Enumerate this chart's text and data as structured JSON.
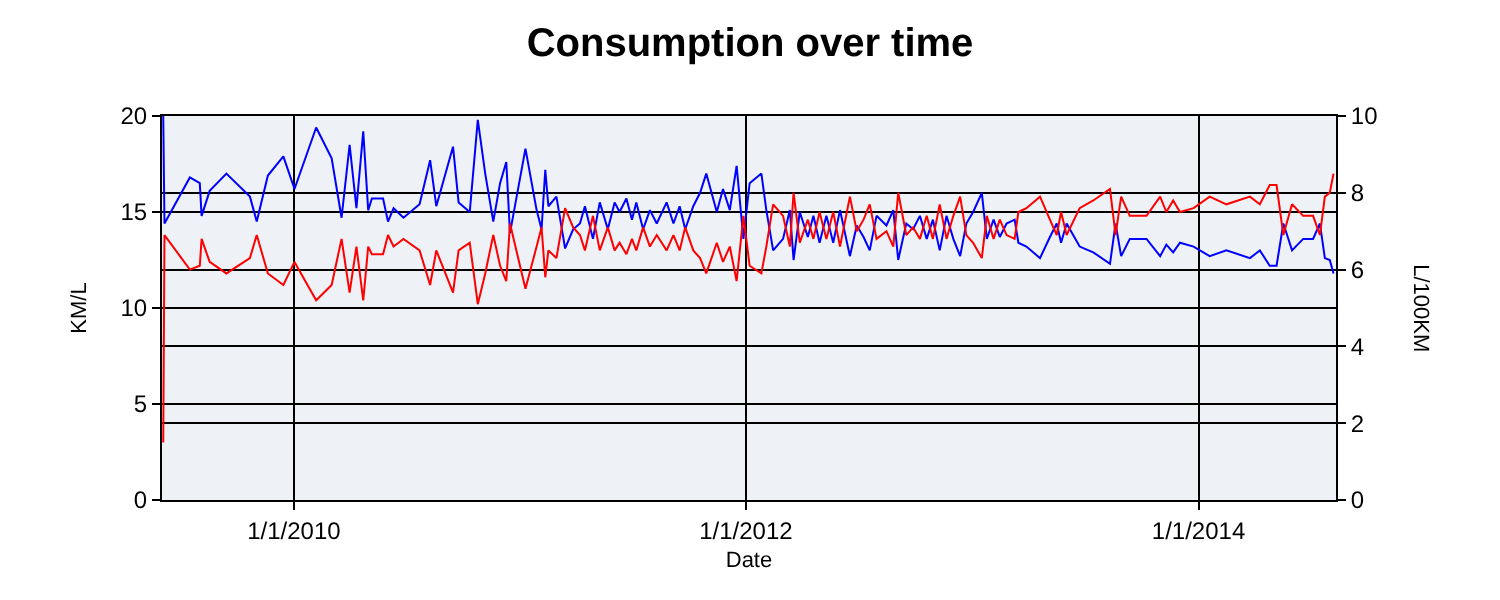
{
  "chart_data": {
    "type": "line",
    "title": "Consumption over time",
    "xlabel": "Date",
    "ylabel": "KM/L",
    "y2label": "L/100KM",
    "x": [
      "2009-06-04",
      "2009-06-06",
      "2009-07-17",
      "2009-08-02",
      "2009-08-05",
      "2009-08-18",
      "2009-09-14",
      "2009-10-22",
      "2009-11-02",
      "2009-11-20",
      "2009-12-15",
      "2010-01-02",
      "2010-02-06",
      "2010-03-03",
      "2010-03-19",
      "2010-04-01",
      "2010-04-12",
      "2010-04-23",
      "2010-05-01",
      "2010-05-07",
      "2010-05-25",
      "2010-06-02",
      "2010-06-11",
      "2010-06-27",
      "2010-07-23",
      "2010-08-09",
      "2010-08-19",
      "2010-09-15",
      "2010-09-24",
      "2010-10-12",
      "2010-10-25",
      "2010-11-06",
      "2010-11-19",
      "2010-11-30",
      "2010-12-10",
      "2010-12-16",
      "2011-01-10",
      "2011-01-28",
      "2011-02-05",
      "2011-02-11",
      "2011-02-16",
      "2011-03-01",
      "2011-03-15",
      "2011-03-28",
      "2011-04-08",
      "2011-04-16",
      "2011-04-29",
      "2011-05-10",
      "2011-05-23",
      "2011-06-03",
      "2011-06-11",
      "2011-06-22",
      "2011-07-01",
      "2011-07-08",
      "2011-07-19",
      "2011-07-30",
      "2011-08-10",
      "2011-08-26",
      "2011-09-06",
      "2011-09-16",
      "2011-09-25",
      "2011-10-08",
      "2011-10-19",
      "2011-10-29",
      "2011-11-15",
      "2011-11-25",
      "2011-12-06",
      "2011-12-17",
      "2011-12-28",
      "2012-01-07",
      "2012-01-26",
      "2012-02-03",
      "2012-02-14",
      "2012-03-01",
      "2012-03-12",
      "2012-03-18",
      "2012-03-28",
      "2012-04-10",
      "2012-04-19",
      "2012-04-29",
      "2012-05-10",
      "2012-05-21",
      "2012-06-01",
      "2012-06-17",
      "2012-06-28",
      "2012-07-09",
      "2012-07-19",
      "2012-07-30",
      "2012-08-15",
      "2012-08-26",
      "2012-09-03",
      "2012-09-16",
      "2012-09-27",
      "2012-10-08",
      "2012-10-19",
      "2012-10-29",
      "2012-11-09",
      "2012-11-20",
      "2012-12-01",
      "2012-12-12",
      "2012-12-22",
      "2013-01-02",
      "2013-01-16",
      "2013-01-24",
      "2013-02-04",
      "2013-02-14",
      "2013-02-25",
      "2013-03-10",
      "2013-03-16",
      "2013-03-29",
      "2013-04-20",
      "2013-05-06",
      "2013-05-17",
      "2013-05-24",
      "2013-06-02",
      "2013-06-23",
      "2013-07-15",
      "2013-08-11",
      "2013-08-20",
      "2013-08-29",
      "2013-09-12",
      "2013-10-09",
      "2013-10-31",
      "2013-11-10",
      "2013-11-21",
      "2013-12-02",
      "2013-12-24",
      "2014-01-19",
      "2014-02-15",
      "2014-03-25",
      "2014-04-10",
      "2014-04-26",
      "2014-05-07",
      "2014-05-18",
      "2014-06-01",
      "2014-06-19",
      "2014-07-05",
      "2014-07-16",
      "2014-07-24",
      "2014-08-01",
      "2014-08-07"
    ],
    "series": [
      {
        "color": "#0000ff",
        "values": [
          20,
          14.4,
          16.8,
          16.5,
          14.8,
          16.1,
          17.0,
          15.8,
          14.5,
          16.9,
          17.9,
          16.2,
          19.4,
          17.8,
          14.7,
          18.5,
          15.2,
          19.2,
          15.1,
          15.7,
          15.7,
          14.5,
          15.2,
          14.7,
          15.4,
          17.7,
          15.3,
          18.4,
          15.5,
          15.0,
          19.8,
          17.0,
          14.5,
          16.5,
          17.6,
          13.9,
          18.3,
          15.1,
          14.1,
          17.2,
          15.3,
          15.8,
          13.1,
          14.1,
          14.4,
          15.3,
          13.6,
          15.5,
          14.1,
          15.5,
          15.0,
          15.7,
          14.6,
          15.5,
          14.1,
          15.1,
          14.4,
          15.5,
          14.4,
          15.3,
          14.1,
          15.3,
          16.0,
          17.0,
          15.0,
          16.2,
          15.1,
          17.4,
          13.6,
          16.5,
          17.0,
          15.1,
          13.0,
          13.6,
          15.1,
          12.5,
          15.0,
          13.7,
          14.8,
          13.4,
          14.8,
          13.4,
          15.1,
          12.7,
          14.3,
          13.7,
          13.0,
          14.8,
          14.3,
          15.1,
          12.5,
          14.4,
          14.1,
          14.8,
          13.6,
          14.6,
          13.0,
          14.8,
          13.6,
          12.7,
          14.4,
          15.0,
          16.0,
          13.6,
          14.6,
          13.7,
          14.4,
          14.6,
          13.4,
          13.2,
          12.6,
          13.7,
          14.4,
          13.4,
          14.4,
          13.2,
          12.9,
          12.3,
          14.4,
          12.7,
          13.6,
          13.6,
          12.7,
          13.3,
          12.9,
          13.4,
          13.2,
          12.7,
          13.0,
          12.6,
          13.0,
          12.2,
          12.2,
          14.4,
          13.0,
          13.6,
          13.6,
          14.4,
          12.6,
          12.5,
          11.8
        ]
      },
      {
        "color": "#ff0000",
        "axis": "y2",
        "values": [
          1.5,
          6.9,
          6.0,
          6.1,
          6.8,
          6.2,
          5.9,
          6.3,
          6.9,
          5.9,
          5.6,
          6.2,
          5.2,
          5.6,
          6.8,
          5.4,
          6.6,
          5.2,
          6.6,
          6.4,
          6.4,
          6.9,
          6.6,
          6.8,
          6.5,
          5.6,
          6.5,
          5.4,
          6.5,
          6.7,
          5.1,
          5.9,
          6.9,
          6.1,
          5.7,
          7.2,
          5.5,
          6.6,
          7.1,
          5.8,
          6.5,
          6.3,
          7.6,
          7.1,
          6.9,
          6.5,
          7.4,
          6.5,
          7.1,
          6.5,
          6.7,
          6.4,
          6.8,
          6.5,
          7.1,
          6.6,
          6.9,
          6.5,
          6.9,
          6.5,
          7.1,
          6.5,
          6.3,
          5.9,
          6.7,
          6.2,
          6.6,
          5.7,
          7.4,
          6.1,
          5.9,
          6.6,
          7.7,
          7.4,
          6.6,
          8.0,
          6.7,
          7.3,
          6.8,
          7.5,
          6.8,
          7.5,
          6.6,
          7.9,
          7.0,
          7.3,
          7.7,
          6.8,
          7.0,
          6.6,
          8.0,
          6.9,
          7.1,
          6.8,
          7.4,
          6.8,
          7.7,
          6.8,
          7.4,
          7.9,
          6.9,
          6.7,
          6.3,
          7.4,
          6.8,
          7.3,
          6.9,
          6.8,
          7.5,
          7.6,
          7.9,
          7.3,
          6.9,
          7.5,
          6.9,
          7.6,
          7.8,
          8.1,
          6.9,
          7.9,
          7.4,
          7.4,
          7.9,
          7.5,
          7.8,
          7.5,
          7.6,
          7.9,
          7.7,
          7.9,
          7.7,
          8.2,
          8.2,
          6.9,
          7.7,
          7.4,
          7.4,
          6.9,
          7.9,
          8.0,
          8.5
        ]
      }
    ],
    "xlim": [
      "2009-06-02",
      "2014-08-11"
    ],
    "xticks": [
      {
        "value": "2010-01-01",
        "label": "1/1/2010"
      },
      {
        "value": "2012-01-01",
        "label": "1/1/2012"
      },
      {
        "value": "2014-01-01",
        "label": "1/1/2014"
      }
    ],
    "ylim": [
      0,
      20
    ],
    "yticks": [
      0,
      5,
      10,
      15,
      20
    ],
    "y2lim": [
      0,
      10
    ],
    "y2ticks": [
      0,
      2,
      4,
      6,
      8,
      10
    ],
    "grid": true,
    "marker": "none",
    "line_style": "solid"
  }
}
